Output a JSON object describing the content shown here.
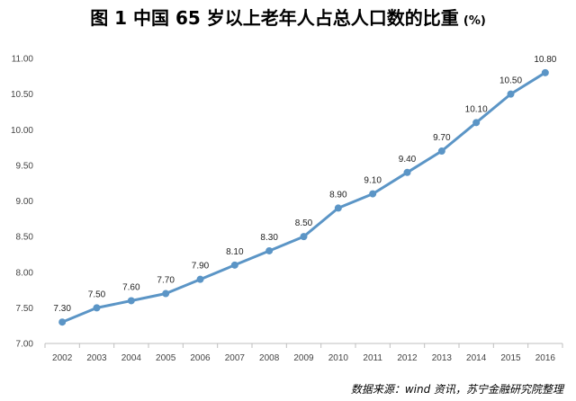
{
  "title": "图 1  中国 65 岁以上老年人占总人口数的比重",
  "title_unit": "(%)",
  "source": "数据来源：wind 资讯，苏宁金融研究院整理",
  "chart_data": {
    "type": "line",
    "x": [
      "2002",
      "2003",
      "2004",
      "2005",
      "2006",
      "2007",
      "2008",
      "2009",
      "2010",
      "2011",
      "2012",
      "2013",
      "2014",
      "2015",
      "2016"
    ],
    "values": [
      7.3,
      7.5,
      7.6,
      7.7,
      7.9,
      8.1,
      8.3,
      8.5,
      8.9,
      9.1,
      9.4,
      9.7,
      10.1,
      10.5,
      10.8
    ],
    "data_labels": [
      "7.30",
      "7.50",
      "7.60",
      "7.70",
      "7.90",
      "8.10",
      "8.30",
      "8.50",
      "8.90",
      "9.10",
      "9.40",
      "9.70",
      "10.10",
      "10.50",
      "10.80"
    ],
    "ylim": [
      7.0,
      11.0
    ],
    "y_ticks": [
      "7.00",
      "7.50",
      "8.00",
      "8.50",
      "9.00",
      "9.50",
      "10.00",
      "10.50",
      "11.00"
    ],
    "grid": false,
    "color": "#5b95c6"
  }
}
